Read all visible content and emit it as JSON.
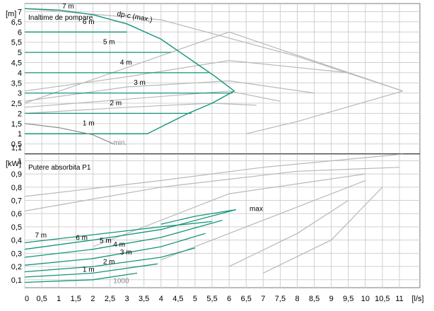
{
  "chart_data": [
    {
      "type": "line",
      "title": "Inaltime de pompare",
      "ylabel": "[m]",
      "xlabel": "[l/s]",
      "xlim": [
        0,
        11.6
      ],
      "ylim": [
        0,
        7.4
      ],
      "x_ticks": [
        "0",
        "0,5",
        "1",
        "1,5",
        "2",
        "2,5",
        "3",
        "3,5",
        "4",
        "4,5",
        "5",
        "5,5",
        "6",
        "6,5",
        "7",
        "7,5",
        "8",
        "8,5",
        "9",
        "9,5",
        "10",
        "10,5",
        "11",
        "[l/s]"
      ],
      "y_ticks": [
        "0,5",
        "1",
        "1,5",
        "2",
        "2,5",
        "3",
        "3,5",
        "4",
        "4,5",
        "5",
        "5,5",
        "6",
        "6,5",
        "7"
      ],
      "y_tick_values": [
        0.5,
        1,
        1.5,
        2,
        2.5,
        3,
        3.5,
        4,
        4.5,
        5,
        5.5,
        6,
        6.5,
        7
      ],
      "y_unit_label": "[m]",
      "grid": true,
      "colors": {
        "pump_curve": "#14957a",
        "reference_curve": "#b5b5b5",
        "grid": "#c8c8c8"
      },
      "series": [
        {
          "name": "1 m",
          "x": [
            0,
            3.6
          ],
          "y": [
            1,
            1
          ]
        },
        {
          "name": "2 m",
          "x": [
            0,
            4.9
          ],
          "y": [
            2,
            2
          ]
        },
        {
          "name": "3 m",
          "x": [
            0,
            6.1
          ],
          "y": [
            3,
            3
          ]
        },
        {
          "name": "4 m",
          "x": [
            0,
            5.4
          ],
          "y": [
            4,
            4
          ]
        },
        {
          "name": "5 m",
          "x": [
            0,
            4.3
          ],
          "y": [
            5,
            5
          ]
        },
        {
          "name": "6 m",
          "x": [
            0,
            3.0
          ],
          "y": [
            6,
            6
          ]
        },
        {
          "name": "7 m",
          "x": [
            0,
            0
          ],
          "y": [
            7,
            7
          ]
        },
        {
          "name": "dp-c (max.)",
          "x": [
            0,
            1,
            2,
            3,
            4,
            5,
            5.6,
            6.15,
            5.5,
            4.8,
            4.2,
            3.6,
            0
          ],
          "y": [
            7.15,
            7.08,
            6.85,
            6.4,
            5.65,
            4.5,
            3.8,
            3.1,
            2.5,
            2.0,
            1.5,
            1.0,
            1.0
          ]
        },
        {
          "name": "min.",
          "x": [
            0,
            1,
            2,
            2.6
          ],
          "y": [
            1.5,
            1.3,
            0.95,
            0.5
          ]
        }
      ],
      "reference_curves": [
        {
          "x": [
            0,
            4,
            8,
            11.1
          ],
          "y": [
            7.15,
            6.6,
            4.8,
            3.1
          ]
        },
        {
          "x": [
            0,
            3,
            6,
            9.5
          ],
          "y": [
            3.1,
            3.8,
            4.6,
            4.0
          ]
        },
        {
          "x": [
            0,
            3,
            6,
            8.5
          ],
          "y": [
            2.6,
            3.3,
            3.6,
            3.0
          ]
        },
        {
          "x": [
            0,
            3,
            6,
            7.5
          ],
          "y": [
            2.3,
            2.7,
            3.1,
            2.6
          ]
        },
        {
          "x": [
            0,
            3,
            5.5,
            6.8
          ],
          "y": [
            2.0,
            2.3,
            2.5,
            2.4
          ]
        },
        {
          "x": [
            6.5,
            8,
            11.1
          ],
          "y": [
            1.0,
            1.6,
            3.1
          ]
        },
        {
          "x": [
            0,
            6,
            11.1
          ],
          "y": [
            2.5,
            6.0,
            3.1
          ]
        }
      ],
      "labels": [
        "7 m",
        "6 m",
        "5 m",
        "4 m",
        "3 m",
        "2 m",
        "1 m",
        "dp-c (max.)",
        "min."
      ]
    },
    {
      "type": "line",
      "title": "Putere absorbita P1",
      "ylabel": "[kW]",
      "xlabel": "[l/s]",
      "xlim": [
        0,
        11.6
      ],
      "ylim": [
        0.04,
        1.05
      ],
      "y_ticks": [
        "0,1",
        "0,2",
        "0,3",
        "0,4",
        "0,5",
        "0,6",
        "0,7",
        "0,8",
        "0,9",
        "1",
        "1,1"
      ],
      "y_tick_values": [
        0.1,
        0.2,
        0.3,
        0.4,
        0.5,
        0.6,
        0.7,
        0.8,
        0.9,
        1.0,
        1.1
      ],
      "y_unit_label": "[kW]",
      "grid": true,
      "series": [
        {
          "name": "7 m",
          "x": [
            0,
            2,
            4,
            5.5
          ],
          "y": [
            0.38,
            0.44,
            0.5,
            0.54
          ]
        },
        {
          "name": "6 m",
          "x": [
            0,
            2,
            4,
            6.2
          ],
          "y": [
            0.33,
            0.4,
            0.48,
            0.63
          ]
        },
        {
          "name": "5 m",
          "x": [
            0,
            2,
            4,
            5.8
          ],
          "y": [
            0.27,
            0.33,
            0.42,
            0.55
          ]
        },
        {
          "name": "4 m",
          "x": [
            0,
            2,
            4,
            5.3
          ],
          "y": [
            0.21,
            0.26,
            0.35,
            0.45
          ]
        },
        {
          "name": "3 m",
          "x": [
            0,
            2,
            4,
            5.0
          ],
          "y": [
            0.16,
            0.2,
            0.27,
            0.34
          ]
        },
        {
          "name": "2 m",
          "x": [
            0,
            2,
            3.9
          ],
          "y": [
            0.12,
            0.15,
            0.22
          ]
        },
        {
          "name": "1 m",
          "x": [
            0,
            2,
            3.3
          ],
          "y": [
            0.08,
            0.1,
            0.15
          ]
        },
        {
          "name": "max",
          "x": [
            4,
            5,
            6.2
          ],
          "y": [
            0.52,
            0.58,
            0.63
          ]
        }
      ],
      "reference_curves": [
        {
          "x": [
            0,
            4,
            7,
            11.1
          ],
          "y": [
            0.73,
            0.85,
            0.95,
            1.05
          ]
        },
        {
          "x": [
            0,
            4,
            8,
            11.0
          ],
          "y": [
            0.62,
            0.8,
            0.92,
            0.95
          ]
        },
        {
          "x": [
            2,
            6,
            10
          ],
          "y": [
            0.35,
            0.75,
            0.9
          ]
        },
        {
          "x": [
            4,
            7,
            10
          ],
          "y": [
            0.25,
            0.55,
            0.85
          ]
        },
        {
          "x": [
            6,
            8,
            9.5
          ],
          "y": [
            0.2,
            0.45,
            0.7
          ]
        },
        {
          "x": [
            7,
            9,
            10.5
          ],
          "y": [
            0.15,
            0.4,
            0.8
          ]
        }
      ],
      "labels": [
        "7 m",
        "6 m",
        "5 m",
        "4 m",
        "3 m",
        "2 m",
        "1 m",
        "max",
        "1000"
      ]
    }
  ]
}
